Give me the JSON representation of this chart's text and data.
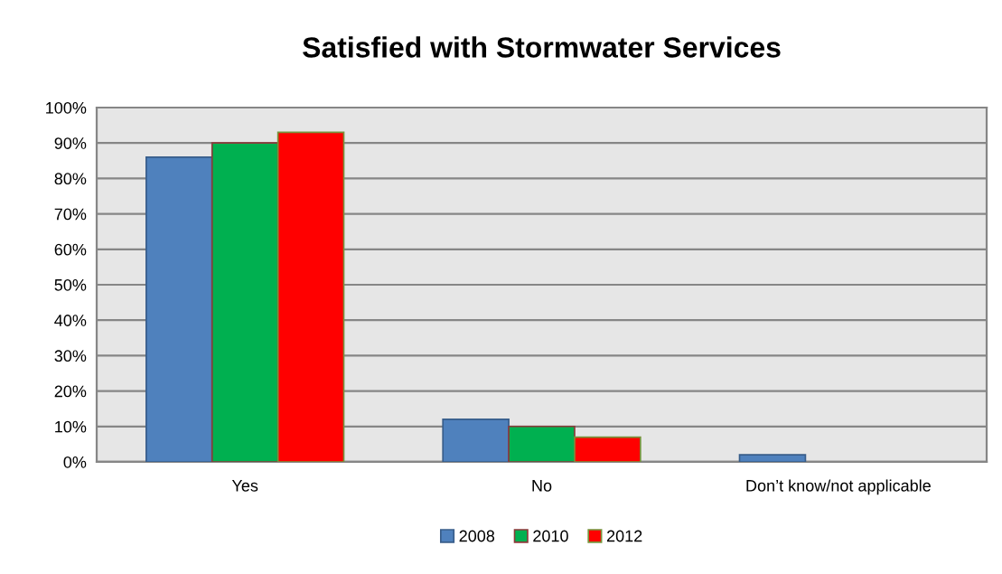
{
  "chart_data": {
    "type": "bar",
    "title": "Satisfied with Stormwater Services",
    "categories": [
      "Yes",
      "No",
      "Don’t know/not applicable"
    ],
    "series": [
      {
        "name": "2008",
        "color": "#4f81bd",
        "values": [
          86,
          12,
          2
        ]
      },
      {
        "name": "2010",
        "color": "#00b050",
        "values": [
          90,
          10,
          null
        ]
      },
      {
        "name": "2012",
        "color": "#ff0000",
        "values": [
          93,
          7,
          null
        ]
      }
    ],
    "ylim": [
      0,
      100
    ],
    "yticks": [
      {
        "value": 0,
        "label": "0%"
      },
      {
        "value": 10,
        "label": "10%"
      },
      {
        "value": 20,
        "label": "20%"
      },
      {
        "value": 30,
        "label": "30%"
      },
      {
        "value": 40,
        "label": "40%"
      },
      {
        "value": 50,
        "label": "50%"
      },
      {
        "value": 60,
        "label": "60%"
      },
      {
        "value": 70,
        "label": "70%"
      },
      {
        "value": 80,
        "label": "80%"
      },
      {
        "value": 90,
        "label": "90%"
      },
      {
        "value": 100,
        "label": "100%"
      }
    ],
    "grid": "y",
    "legend": "bottom"
  }
}
